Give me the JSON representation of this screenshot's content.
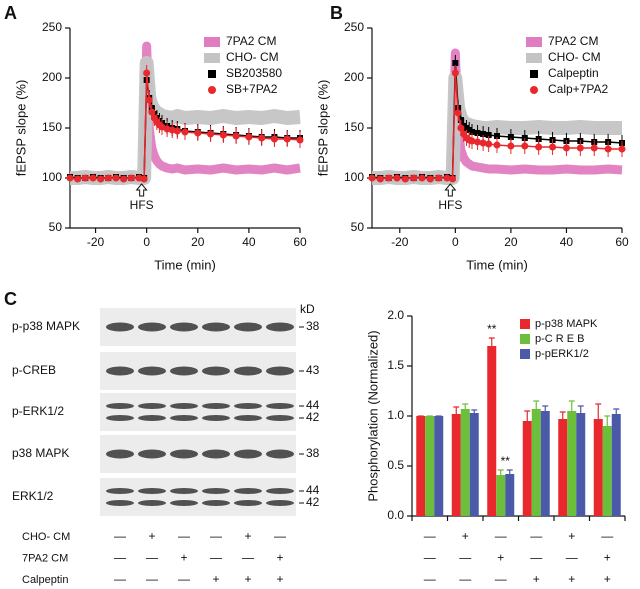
{
  "panel_labels": [
    "A",
    "B",
    "C"
  ],
  "chart_data": [
    {
      "type": "line",
      "ylabel": "fEPSP slope (%)",
      "xlabel": "Time (min)",
      "x": [
        -30,
        -27,
        -24,
        -21,
        -18,
        -15,
        -12,
        -9,
        -6,
        -3,
        -1,
        0,
        1,
        2,
        3,
        4,
        5,
        6,
        8,
        10,
        12,
        15,
        20,
        25,
        30,
        35,
        40,
        45,
        50,
        55,
        60
      ],
      "xlim": [
        -30,
        60
      ],
      "xticks": [
        -20,
        0,
        20,
        40,
        60
      ],
      "ylim": [
        50,
        250
      ],
      "yticks": [
        50,
        100,
        150,
        200,
        250
      ],
      "legend": "upper right",
      "annotations": [
        "HFS"
      ],
      "series": [
        {
          "name": "7PA2 CM",
          "color": "#e07cc0",
          "style": "band",
          "values": [
            100,
            101,
            100,
            100,
            101,
            100,
            100,
            101,
            100,
            100,
            101,
            232,
            150,
            130,
            122,
            117,
            114,
            112,
            110,
            109,
            110,
            108,
            109,
            108,
            110,
            108,
            109,
            108,
            110,
            108,
            110
          ]
        },
        {
          "name": "CHO- CM",
          "color": "#c4c4c4",
          "style": "band",
          "values": [
            100,
            100,
            101,
            100,
            100,
            101,
            100,
            100,
            101,
            100,
            100,
            215,
            180,
            172,
            168,
            165,
            164,
            162,
            161,
            160,
            162,
            160,
            161,
            160,
            162,
            160,
            161,
            160,
            162,
            160,
            161
          ]
        },
        {
          "name": "SB203580",
          "color": "#000000",
          "style": "square",
          "values": [
            101,
            100,
            100,
            101,
            100,
            100,
            101,
            100,
            100,
            101,
            100,
            198,
            180,
            170,
            164,
            160,
            157,
            155,
            152,
            150,
            149,
            147,
            146,
            145,
            144,
            143,
            142,
            141,
            141,
            140,
            140
          ]
        },
        {
          "name": "SB+7PA2",
          "color": "#e8282c",
          "style": "circle",
          "values": [
            100,
            99,
            100,
            100,
            99,
            100,
            100,
            99,
            100,
            100,
            99,
            205,
            178,
            166,
            160,
            156,
            153,
            151,
            149,
            148,
            147,
            146,
            145,
            144,
            143,
            142,
            141,
            140,
            139,
            139,
            138
          ]
        }
      ]
    },
    {
      "type": "line",
      "ylabel": "fEPSP slope (%)",
      "xlabel": "Time (min)",
      "x": [
        -30,
        -27,
        -24,
        -21,
        -18,
        -15,
        -12,
        -9,
        -6,
        -3,
        -1,
        0,
        1,
        2,
        3,
        4,
        5,
        6,
        8,
        10,
        12,
        15,
        20,
        25,
        30,
        35,
        40,
        45,
        50,
        55,
        60
      ],
      "xlim": [
        -30,
        60
      ],
      "xticks": [
        -20,
        0,
        20,
        40,
        60
      ],
      "ylim": [
        50,
        250
      ],
      "yticks": [
        50,
        100,
        150,
        200,
        250
      ],
      "legend": "upper right",
      "annotations": [
        "HFS"
      ],
      "series": [
        {
          "name": "7PA2 CM",
          "color": "#e07cc0",
          "style": "band",
          "values": [
            100,
            101,
            100,
            100,
            101,
            100,
            100,
            101,
            100,
            100,
            101,
            225,
            150,
            128,
            120,
            116,
            114,
            112,
            111,
            110,
            109,
            109,
            108,
            109,
            108,
            108,
            109,
            108,
            108,
            109,
            108
          ]
        },
        {
          "name": "CHO- CM",
          "color": "#c4c4c4",
          "style": "band",
          "values": [
            100,
            100,
            101,
            100,
            100,
            101,
            100,
            100,
            101,
            100,
            100,
            200,
            170,
            160,
            156,
            154,
            153,
            152,
            151,
            150,
            150,
            151,
            150,
            150,
            151,
            150,
            150,
            151,
            150,
            150,
            150
          ]
        },
        {
          "name": "Calpeptin",
          "color": "#000000",
          "style": "square",
          "values": [
            101,
            100,
            100,
            101,
            100,
            100,
            101,
            100,
            100,
            101,
            100,
            215,
            170,
            158,
            152,
            150,
            148,
            146,
            145,
            144,
            143,
            142,
            141,
            140,
            139,
            138,
            137,
            137,
            136,
            136,
            135
          ]
        },
        {
          "name": "Calp+7PA2",
          "color": "#e8282c",
          "style": "circle",
          "values": [
            100,
            99,
            100,
            100,
            99,
            100,
            100,
            99,
            100,
            100,
            99,
            205,
            165,
            150,
            144,
            140,
            138,
            137,
            136,
            135,
            134,
            133,
            132,
            132,
            131,
            131,
            130,
            130,
            130,
            129,
            129
          ]
        }
      ]
    },
    {
      "type": "bar",
      "ylabel": "Phosphorylation (Normalized)",
      "categories": [
        null,
        null,
        null,
        null,
        null,
        null
      ],
      "ylim": [
        0,
        2
      ],
      "yticks": [
        {
          "value": 0,
          "label": "0.0"
        },
        {
          "value": 0.5,
          "label": "0.5"
        },
        {
          "value": 1,
          "label": "1.0"
        },
        {
          "value": 1.5,
          "label": "1.5"
        },
        {
          "value": 2,
          "label": "2.0"
        }
      ],
      "legend": "upper right",
      "annotations": [
        "**",
        "**"
      ],
      "series": [
        {
          "name": "p-p38 MAPK",
          "color": "#e8282c",
          "values": [
            1.0,
            1.02,
            1.7,
            0.95,
            0.97,
            0.97
          ],
          "errors": [
            0,
            0.07,
            0.08,
            0.1,
            0.07,
            0.15
          ]
        },
        {
          "name": "p-C R E B",
          "color": "#6cbf3a",
          "values": [
            1.0,
            1.07,
            0.41,
            1.07,
            1.05,
            0.9
          ],
          "errors": [
            0,
            0.05,
            0.05,
            0.08,
            0.1,
            0.1
          ]
        },
        {
          "name": "p-pERK1/2",
          "color": "#4a5aa8",
          "values": [
            1.0,
            1.03,
            0.42,
            1.05,
            1.03,
            1.02
          ],
          "errors": [
            0,
            0.03,
            0.04,
            0.05,
            0.07,
            0.05
          ]
        }
      ]
    }
  ],
  "blot": {
    "unit": "kD",
    "rows": [
      {
        "label": "p-p38 MAPK",
        "markers": [
          "38"
        ]
      },
      {
        "label": "p-CREB",
        "markers": [
          "43"
        ]
      },
      {
        "label": "p-ERK1/2",
        "markers": [
          "44",
          "42"
        ]
      },
      {
        "label": "p38 MAPK",
        "markers": [
          "38"
        ]
      },
      {
        "label": "ERK1/2",
        "markers": [
          "44",
          "42"
        ]
      }
    ],
    "treatments": [
      {
        "label": "CHO- CM",
        "signs": [
          "—",
          "+",
          "—",
          "—",
          "+",
          "—"
        ]
      },
      {
        "label": "7PA2 CM",
        "signs": [
          "—",
          "—",
          "+",
          "—",
          "—",
          "+"
        ]
      },
      {
        "label": "Calpeptin",
        "signs": [
          "—",
          "—",
          "—",
          "+",
          "+",
          "+"
        ]
      }
    ]
  }
}
